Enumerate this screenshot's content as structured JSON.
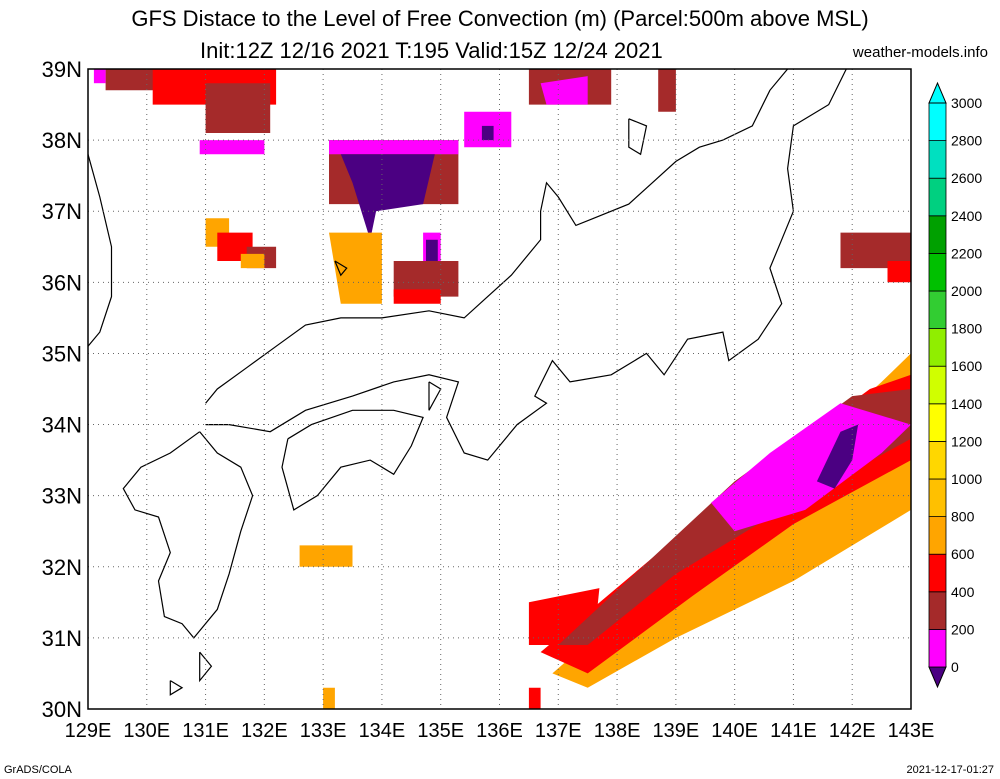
{
  "title_line1": "GFS Distace to the Level of Free Convection (m) (Parcel:500m above MSL)",
  "title_line2": "Init:12Z 12/16 2021 T:195 Valid:15Z 12/24 2021",
  "site": "weather-models.info",
  "footer_left": "GrADS/COLA",
  "footer_right": "2021-12-17-01:27",
  "map": {
    "lon_range": [
      129,
      143
    ],
    "lat_range": [
      30,
      39
    ],
    "lon_labels": [
      "129E",
      "130E",
      "131E",
      "132E",
      "133E",
      "134E",
      "135E",
      "136E",
      "137E",
      "138E",
      "139E",
      "140E",
      "141E",
      "142E",
      "143E"
    ],
    "lat_labels": [
      "39N",
      "38N",
      "37N",
      "36N",
      "35N",
      "34N",
      "33N",
      "32N",
      "31N",
      "30N"
    ]
  },
  "colorbar": {
    "labels": [
      "0",
      "200",
      "400",
      "600",
      "800",
      "1000",
      "1200",
      "1400",
      "1600",
      "1800",
      "2000",
      "2200",
      "2400",
      "2600",
      "2800",
      "3000"
    ],
    "colors": [
      "#4b0082",
      "#ff00ff",
      "#a52a2a",
      "#ff0000",
      "#ffa500",
      "#ffc000",
      "#ffd700",
      "#ffff00",
      "#d0ff00",
      "#90ee00",
      "#32cd32",
      "#00c000",
      "#00a000",
      "#00d080",
      "#00e0c0",
      "#00ffff"
    ]
  },
  "regions": [
    {
      "color": "#a52a2a",
      "poly": [
        [
          129.3,
          39
        ],
        [
          131.2,
          39
        ],
        [
          131.2,
          38.7
        ],
        [
          129.3,
          38.7
        ]
      ]
    },
    {
      "color": "#ff0000",
      "poly": [
        [
          130.1,
          39
        ],
        [
          132.2,
          39
        ],
        [
          132.2,
          38.5
        ],
        [
          130.1,
          38.5
        ]
      ]
    },
    {
      "color": "#ff00ff",
      "poly": [
        [
          129.1,
          39
        ],
        [
          129.3,
          39
        ],
        [
          129.3,
          38.8
        ],
        [
          129.1,
          38.8
        ]
      ]
    },
    {
      "color": "#a52a2a",
      "poly": [
        [
          131.0,
          38.8
        ],
        [
          132.1,
          38.8
        ],
        [
          132.1,
          38.1
        ],
        [
          131.0,
          38.1
        ]
      ]
    },
    {
      "color": "#ff00ff",
      "poly": [
        [
          130.9,
          38.0
        ],
        [
          132.0,
          38.0
        ],
        [
          132.0,
          37.8
        ],
        [
          130.9,
          37.8
        ]
      ]
    },
    {
      "color": "#a52a2a",
      "poly": [
        [
          133.1,
          38.0
        ],
        [
          135.3,
          38.0
        ],
        [
          135.3,
          37.1
        ],
        [
          133.1,
          37.1
        ]
      ]
    },
    {
      "color": "#ff00ff",
      "poly": [
        [
          133.1,
          38.0
        ],
        [
          135.3,
          38.0
        ],
        [
          135.3,
          37.8
        ],
        [
          133.1,
          37.8
        ]
      ]
    },
    {
      "color": "#4b0082",
      "poly": [
        [
          133.3,
          37.8
        ],
        [
          134.9,
          37.8
        ],
        [
          134.7,
          37.1
        ],
        [
          133.9,
          37.0
        ],
        [
          133.8,
          36.6
        ],
        [
          133.5,
          37.4
        ]
      ]
    },
    {
      "color": "#ff00ff",
      "poly": [
        [
          135.4,
          38.4
        ],
        [
          136.2,
          38.4
        ],
        [
          136.2,
          37.9
        ],
        [
          135.4,
          37.9
        ]
      ]
    },
    {
      "color": "#4b0082",
      "poly": [
        [
          135.7,
          38.2
        ],
        [
          135.9,
          38.2
        ],
        [
          135.9,
          38.0
        ],
        [
          135.7,
          38.0
        ]
      ]
    },
    {
      "color": "#a52a2a",
      "poly": [
        [
          136.5,
          39
        ],
        [
          137.9,
          39
        ],
        [
          137.9,
          38.5
        ],
        [
          136.5,
          38.5
        ]
      ]
    },
    {
      "color": "#ff00ff",
      "poly": [
        [
          136.7,
          38.8
        ],
        [
          137.5,
          38.9
        ],
        [
          137.5,
          38.5
        ],
        [
          136.8,
          38.5
        ]
      ]
    },
    {
      "color": "#a52a2a",
      "poly": [
        [
          138.7,
          39
        ],
        [
          139.0,
          39
        ],
        [
          139.0,
          38.4
        ],
        [
          138.7,
          38.4
        ]
      ]
    },
    {
      "color": "#ffa500",
      "poly": [
        [
          133.1,
          36.7
        ],
        [
          134.0,
          36.7
        ],
        [
          134.0,
          35.7
        ],
        [
          133.3,
          35.7
        ]
      ]
    },
    {
      "color": "#a52a2a",
      "poly": [
        [
          134.2,
          36.3
        ],
        [
          135.3,
          36.3
        ],
        [
          135.3,
          35.8
        ],
        [
          134.2,
          35.8
        ]
      ]
    },
    {
      "color": "#ff0000",
      "poly": [
        [
          134.2,
          35.9
        ],
        [
          135.0,
          35.9
        ],
        [
          135.0,
          35.7
        ],
        [
          134.2,
          35.7
        ]
      ]
    },
    {
      "color": "#ff00ff",
      "poly": [
        [
          134.7,
          36.7
        ],
        [
          135.0,
          36.7
        ],
        [
          135.0,
          36.3
        ],
        [
          134.7,
          36.3
        ]
      ]
    },
    {
      "color": "#4b0082",
      "poly": [
        [
          134.75,
          36.6
        ],
        [
          134.95,
          36.6
        ],
        [
          134.95,
          36.3
        ],
        [
          134.75,
          36.3
        ]
      ]
    },
    {
      "color": "#ffa500",
      "poly": [
        [
          131.0,
          36.9
        ],
        [
          131.4,
          36.9
        ],
        [
          131.4,
          36.5
        ],
        [
          131.0,
          36.5
        ]
      ]
    },
    {
      "color": "#ff0000",
      "poly": [
        [
          131.2,
          36.7
        ],
        [
          131.8,
          36.7
        ],
        [
          131.8,
          36.3
        ],
        [
          131.2,
          36.3
        ]
      ]
    },
    {
      "color": "#a52a2a",
      "poly": [
        [
          131.7,
          36.5
        ],
        [
          132.2,
          36.5
        ],
        [
          132.2,
          36.2
        ],
        [
          131.7,
          36.2
        ]
      ]
    },
    {
      "color": "#ffa500",
      "poly": [
        [
          131.6,
          36.4
        ],
        [
          132.0,
          36.4
        ],
        [
          132.0,
          36.2
        ],
        [
          131.6,
          36.2
        ]
      ]
    },
    {
      "color": "#ffa500",
      "poly": [
        [
          132.6,
          32.3
        ],
        [
          133.5,
          32.3
        ],
        [
          133.5,
          32.0
        ],
        [
          132.6,
          32.0
        ]
      ]
    },
    {
      "color": "#ffa500",
      "poly": [
        [
          133.0,
          30.3
        ],
        [
          133.2,
          30.3
        ],
        [
          133.2,
          30.0
        ],
        [
          133.0,
          30.0
        ]
      ]
    },
    {
      "color": "#ff0000",
      "poly": [
        [
          136.5,
          30.3
        ],
        [
          136.7,
          30.3
        ],
        [
          136.7,
          30.0
        ],
        [
          136.5,
          30.0
        ]
      ]
    },
    {
      "color": "#a52a2a",
      "poly": [
        [
          141.8,
          36.7
        ],
        [
          143,
          36.7
        ],
        [
          143,
          36.2
        ],
        [
          141.8,
          36.2
        ]
      ]
    },
    {
      "color": "#ff0000",
      "poly": [
        [
          142.6,
          36.3
        ],
        [
          143,
          36.3
        ],
        [
          143,
          36.0
        ],
        [
          142.6,
          36.0
        ]
      ]
    },
    {
      "color": "#ffa500",
      "poly": [
        [
          136.9,
          30.5
        ],
        [
          140.5,
          33.1
        ],
        [
          142.5,
          34.6
        ],
        [
          143,
          35.0
        ],
        [
          143,
          32.8
        ],
        [
          141.0,
          31.8
        ],
        [
          139.0,
          31.0
        ],
        [
          137.5,
          30.3
        ]
      ]
    },
    {
      "color": "#ff0000",
      "poly": [
        [
          136.7,
          30.8
        ],
        [
          140.0,
          33.1
        ],
        [
          142.3,
          34.5
        ],
        [
          143,
          34.7
        ],
        [
          143,
          33.5
        ],
        [
          141.0,
          32.6
        ],
        [
          139.3,
          31.6
        ],
        [
          137.5,
          30.5
        ]
      ]
    },
    {
      "color": "#ff0000",
      "poly": [
        [
          136.5,
          31.5
        ],
        [
          137.7,
          31.7
        ],
        [
          137.6,
          30.9
        ],
        [
          136.5,
          30.9
        ]
      ]
    },
    {
      "color": "#a52a2a",
      "poly": [
        [
          137.0,
          30.9
        ],
        [
          140.0,
          33.2
        ],
        [
          142.0,
          34.4
        ],
        [
          143,
          34.5
        ],
        [
          143,
          33.8
        ],
        [
          141.0,
          32.9
        ],
        [
          139.0,
          31.9
        ],
        [
          137.5,
          30.9
        ]
      ]
    },
    {
      "color": "#ff00ff",
      "poly": [
        [
          139.6,
          32.9
        ],
        [
          140.6,
          33.6
        ],
        [
          141.8,
          34.3
        ],
        [
          143,
          34.0
        ],
        [
          142.5,
          33.6
        ],
        [
          141.2,
          32.8
        ],
        [
          140.0,
          32.5
        ]
      ]
    },
    {
      "color": "#4b0082",
      "poly": [
        [
          141.4,
          33.2
        ],
        [
          141.8,
          33.9
        ],
        [
          142.1,
          34.0
        ],
        [
          142.0,
          33.5
        ],
        [
          141.7,
          33.1
        ]
      ]
    }
  ]
}
